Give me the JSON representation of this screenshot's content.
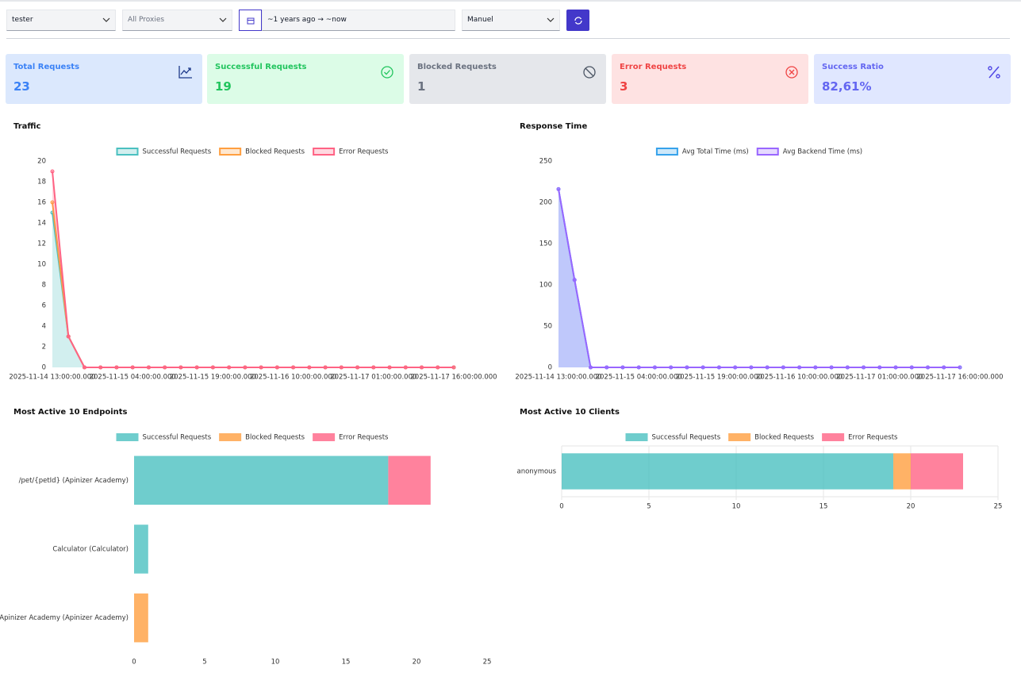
{
  "filters": {
    "user": "tester",
    "proxy": "All Proxies",
    "range": "~1 years ago → ~now",
    "mode": "Manuel"
  },
  "cards": [
    {
      "title": "Total Requests",
      "value": "23"
    },
    {
      "title": "Successful Requests",
      "value": "19"
    },
    {
      "title": "Blocked Requests",
      "value": "1"
    },
    {
      "title": "Error Requests",
      "value": "3"
    },
    {
      "title": "Success Ratio",
      "value": "82,61%"
    }
  ],
  "chart_data": [
    {
      "type": "line",
      "title": "Traffic",
      "stacked": true,
      "fill": true,
      "grid": false,
      "categories": [
        "2025-11-14 13:00:00.000",
        null,
        null,
        null,
        null,
        "2025-11-15 04:00:00.000",
        null,
        null,
        null,
        null,
        "2025-11-15 19:00:00.000",
        null,
        null,
        null,
        null,
        "2025-11-16 10:00:00.000",
        null,
        null,
        null,
        null,
        "2025-11-17 01:00:00.000",
        null,
        null,
        null,
        null,
        "2025-11-17 16:00:00.000"
      ],
      "series": [
        {
          "name": "Successful Requests",
          "color": "#4bc0c0",
          "values": [
            15,
            3,
            0,
            0,
            0,
            0,
            0,
            0,
            0,
            0,
            0,
            0,
            0,
            0,
            0,
            0,
            0,
            0,
            0,
            0,
            0,
            0,
            0,
            0,
            0,
            0
          ]
        },
        {
          "name": "Blocked Requests",
          "color": "#ff9f40",
          "values": [
            1,
            0,
            0,
            0,
            0,
            0,
            0,
            0,
            0,
            0,
            0,
            0,
            0,
            0,
            0,
            0,
            0,
            0,
            0,
            0,
            0,
            0,
            0,
            0,
            0,
            0
          ]
        },
        {
          "name": "Error Requests",
          "color": "#ff6384",
          "values": [
            3,
            0,
            0,
            0,
            0,
            0,
            0,
            0,
            0,
            0,
            0,
            0,
            0,
            0,
            0,
            0,
            0,
            0,
            0,
            0,
            0,
            0,
            0,
            0,
            0,
            0
          ]
        }
      ],
      "ylim": [
        0,
        20
      ],
      "yticks": [
        0,
        2,
        4,
        6,
        8,
        10,
        12,
        14,
        16,
        18,
        20
      ]
    },
    {
      "type": "line",
      "title": "Response Time",
      "stacked": false,
      "fill": true,
      "grid": false,
      "categories": [
        "2025-11-14 13:00:00.000",
        null,
        null,
        null,
        null,
        "2025-11-15 04:00:00.000",
        null,
        null,
        null,
        null,
        "2025-11-15 19:00:00.000",
        null,
        null,
        null,
        null,
        "2025-11-16 10:00:00.000",
        null,
        null,
        null,
        null,
        "2025-11-17 01:00:00.000",
        null,
        null,
        null,
        null,
        "2025-11-17 16:00:00.000"
      ],
      "series": [
        {
          "name": "Avg Total Time (ms)",
          "color": "#36a2eb",
          "values": [
            216,
            106,
            0,
            0,
            0,
            0,
            0,
            0,
            0,
            0,
            0,
            0,
            0,
            0,
            0,
            0,
            0,
            0,
            0,
            0,
            0,
            0,
            0,
            0,
            0,
            0
          ]
        },
        {
          "name": "Avg Backend Time (ms)",
          "color": "#9966ff",
          "values": [
            216,
            106,
            0,
            0,
            0,
            0,
            0,
            0,
            0,
            0,
            0,
            0,
            0,
            0,
            0,
            0,
            0,
            0,
            0,
            0,
            0,
            0,
            0,
            0,
            0,
            0
          ]
        }
      ],
      "ylim": [
        0,
        250
      ],
      "yticks": [
        0,
        50,
        100,
        150,
        200,
        250
      ]
    },
    {
      "type": "hbar",
      "title": "Most Active 10 Endpoints",
      "stacked": true,
      "grid": false,
      "categories": [
        "/pet/{petId} (Apinizer Academy)",
        "Calculator (Calculator)",
        "Apinizer Academy (Apinizer Academy)"
      ],
      "series": [
        {
          "name": "Successful Requests",
          "color": "#4bc0c0",
          "values": [
            18,
            1,
            0
          ]
        },
        {
          "name": "Blocked Requests",
          "color": "#ff9f40",
          "values": [
            0,
            0,
            1
          ]
        },
        {
          "name": "Error Requests",
          "color": "#ff6384",
          "values": [
            3,
            0,
            0
          ]
        }
      ],
      "xlim": [
        0,
        25
      ],
      "xticks": [
        0,
        5,
        10,
        15,
        20,
        25
      ]
    },
    {
      "type": "hbar",
      "title": "Most Active 10 Clients",
      "stacked": true,
      "grid": true,
      "categories": [
        "anonymous"
      ],
      "series": [
        {
          "name": "Successful Requests",
          "color": "#4bc0c0",
          "values": [
            19
          ]
        },
        {
          "name": "Blocked Requests",
          "color": "#ff9f40",
          "values": [
            1
          ]
        },
        {
          "name": "Error Requests",
          "color": "#ff6384",
          "values": [
            3
          ]
        }
      ],
      "xlim": [
        0,
        25
      ],
      "xticks": [
        0,
        5,
        10,
        15,
        20,
        25
      ]
    }
  ]
}
